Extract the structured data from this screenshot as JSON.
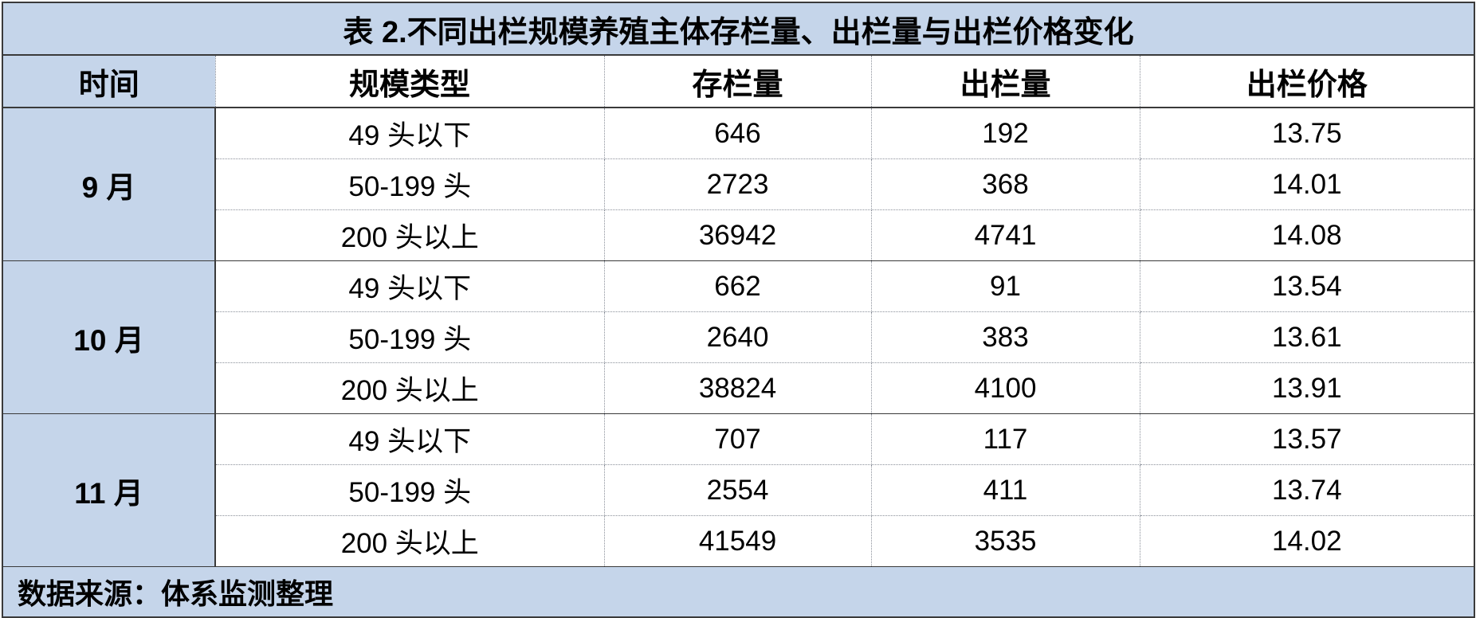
{
  "title": "表 2.不同出栏规模养殖主体存栏量、出栏量与出栏价格变化",
  "headers": [
    "时间",
    "规模类型",
    "存栏量",
    "出栏量",
    "出栏价格"
  ],
  "groups": [
    {
      "month": "9 月",
      "rows": [
        {
          "type": "49 头以下",
          "stock": "646",
          "output": "192",
          "price": "13.75"
        },
        {
          "type": "50-199 头",
          "stock": "2723",
          "output": "368",
          "price": "14.01"
        },
        {
          "type": "200 头以上",
          "stock": "36942",
          "output": "4741",
          "price": "14.08"
        }
      ]
    },
    {
      "month": "10 月",
      "rows": [
        {
          "type": "49 头以下",
          "stock": "662",
          "output": "91",
          "price": "13.54"
        },
        {
          "type": "50-199 头",
          "stock": "2640",
          "output": "383",
          "price": "13.61"
        },
        {
          "type": "200 头以上",
          "stock": "38824",
          "output": "4100",
          "price": "13.91"
        }
      ]
    },
    {
      "month": "11 月",
      "rows": [
        {
          "type": "49 头以下",
          "stock": "707",
          "output": "117",
          "price": "13.57"
        },
        {
          "type": "50-199 头",
          "stock": "2554",
          "output": "411",
          "price": "13.74"
        },
        {
          "type": "200 头以上",
          "stock": "41549",
          "output": "3535",
          "price": "14.02"
        }
      ]
    }
  ],
  "footer": "数据来源：体系监测整理",
  "colors": {
    "header_fill": "#c5d5ea",
    "border": "#3a3a3a"
  }
}
